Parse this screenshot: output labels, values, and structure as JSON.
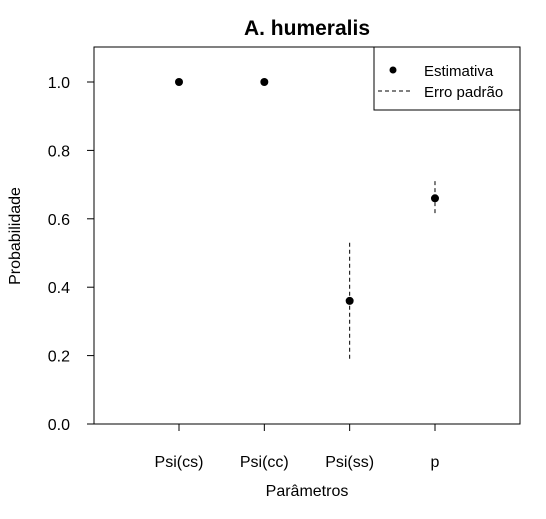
{
  "chart_data": {
    "type": "scatter",
    "title": "A. humeralis",
    "xlabel": "Parâmetros",
    "ylabel": "Probabilidade",
    "categories": [
      "Psi(cs)",
      "Psi(cc)",
      "Psi(ss)",
      "p"
    ],
    "ylim": [
      0.0,
      1.1
    ],
    "yticks": [
      "0.0",
      "0.2",
      "0.4",
      "0.6",
      "0.8",
      "1.0"
    ],
    "series": [
      {
        "name": "Estimativa",
        "values": [
          1.0,
          1.0,
          0.36,
          0.66
        ]
      }
    ],
    "error_bars": {
      "name": "Erro padrão",
      "lower": [
        null,
        null,
        0.19,
        0.61
      ],
      "upper": [
        null,
        null,
        0.53,
        0.71
      ]
    },
    "legend_position": "top-right",
    "grid": false
  },
  "legend": {
    "estimate_label": "Estimativa",
    "error_label": "Erro padrão"
  }
}
